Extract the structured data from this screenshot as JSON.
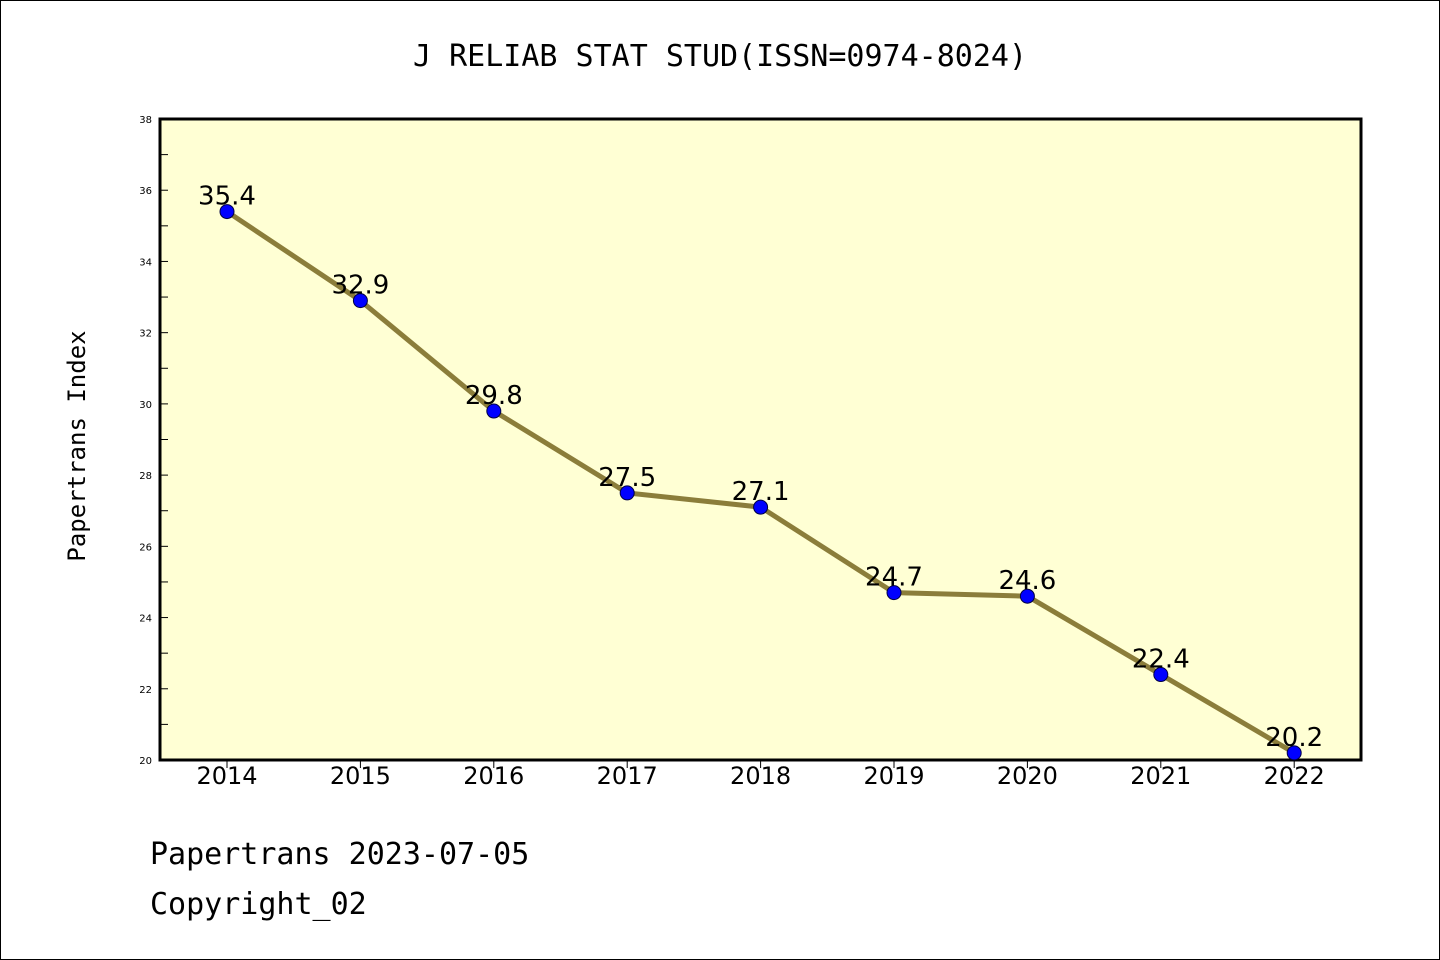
{
  "chart_data": {
    "type": "line",
    "title": "J RELIAB STAT STUD(ISSN=0974-8024)",
    "xlabel": "",
    "ylabel": "Papertrans Index",
    "categories": [
      "2014",
      "2015",
      "2016",
      "2017",
      "2018",
      "2019",
      "2020",
      "2021",
      "2022"
    ],
    "series": [
      {
        "values": [
          35.4,
          32.9,
          29.8,
          27.5,
          27.1,
          24.7,
          24.6,
          22.4,
          20.2
        ]
      }
    ],
    "data_labels": [
      "35.4",
      "32.9",
      "29.8",
      "27.5",
      "27.1",
      "24.7",
      "24.6",
      "22.4",
      "20.2"
    ],
    "ylim": [
      20,
      38
    ],
    "yticks": [
      "20",
      "22",
      "24",
      "26",
      "28",
      "30",
      "32",
      "34",
      "36",
      "38"
    ],
    "grid": false,
    "legend": "none",
    "colors": {
      "plot_background": "#ffffd4",
      "line": "#8b7d3a",
      "marker": "#0000ff",
      "axes": "#000000"
    }
  },
  "footer": {
    "line1": "Papertrans 2023-07-05",
    "line2": "Copyright_02"
  }
}
